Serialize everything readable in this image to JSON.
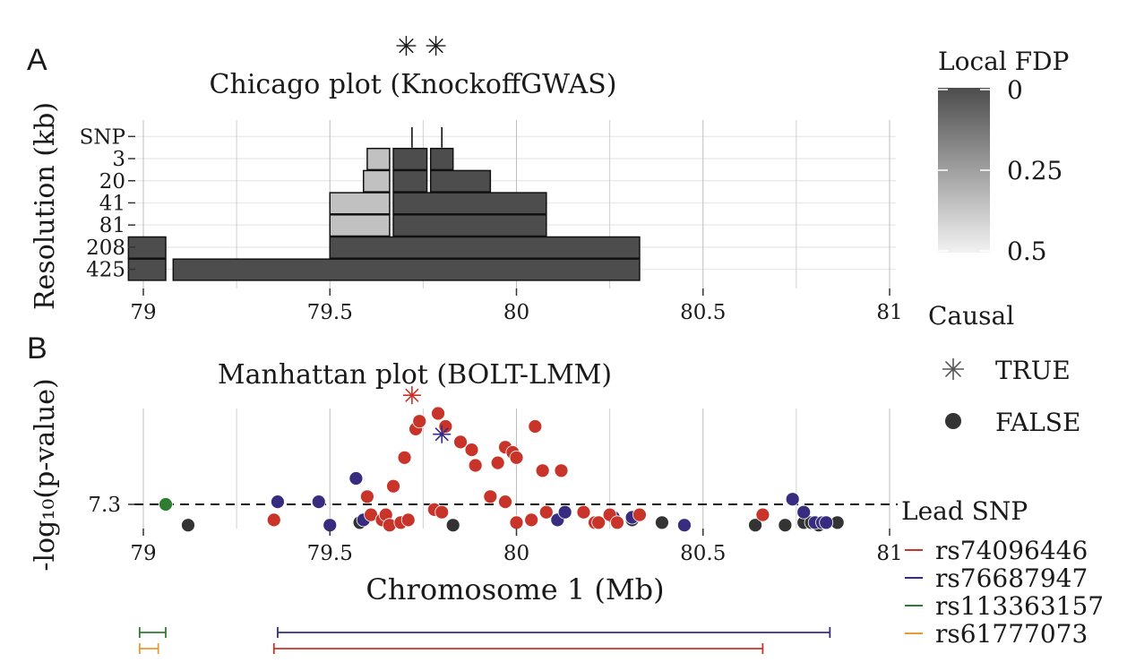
{
  "panel_labels": [
    "A",
    "B"
  ],
  "chart_data": [
    {
      "type": "heatmap",
      "title": "Chicago plot (KnockoffGWAS)",
      "title_marks": [
        "✳",
        "✳"
      ],
      "xlabel": "",
      "ylabel": "Resolution (kb)",
      "xlim": [
        79,
        81
      ],
      "xticks": [
        "79",
        "79.5",
        "80",
        "80.5",
        "81"
      ],
      "yticks": [
        "SNP",
        "3",
        "20",
        "41",
        "81",
        "208",
        "425"
      ],
      "grid": true,
      "color_legend": {
        "title": "Local FDP",
        "ticks": [
          "0",
          "0.25",
          "0.5"
        ],
        "low_color": "#4d4d4d",
        "high_color": "#f2f2f2"
      },
      "blocks": [
        {
          "res": "SNP",
          "x": 79.72,
          "fdp": 0
        },
        {
          "res": "SNP",
          "x": 79.8,
          "fdp": 0
        },
        {
          "res": "3",
          "x0": 79.6,
          "x1": 79.66,
          "fdp": 0.35
        },
        {
          "res": "3",
          "x0": 79.67,
          "x1": 79.76,
          "fdp": 0
        },
        {
          "res": "3",
          "x0": 79.77,
          "x1": 79.83,
          "fdp": 0
        },
        {
          "res": "20",
          "x0": 79.59,
          "x1": 79.66,
          "fdp": 0.35
        },
        {
          "res": "20",
          "x0": 79.67,
          "x1": 79.76,
          "fdp": 0
        },
        {
          "res": "20",
          "x0": 79.77,
          "x1": 79.93,
          "fdp": 0
        },
        {
          "res": "41",
          "x0": 79.5,
          "x1": 79.66,
          "fdp": 0.35
        },
        {
          "res": "41",
          "x0": 79.67,
          "x1": 80.08,
          "fdp": 0
        },
        {
          "res": "81",
          "x0": 79.5,
          "x1": 79.66,
          "fdp": 0.35
        },
        {
          "res": "81",
          "x0": 79.67,
          "x1": 80.08,
          "fdp": 0
        },
        {
          "res": "208",
          "x0": 78.96,
          "x1": 79.06,
          "fdp": 0
        },
        {
          "res": "208",
          "x0": 79.5,
          "x1": 80.33,
          "fdp": 0
        },
        {
          "res": "425",
          "x0": 78.96,
          "x1": 79.06,
          "fdp": 0
        },
        {
          "res": "425",
          "x0": 79.08,
          "x1": 80.33,
          "fdp": 0
        }
      ]
    },
    {
      "type": "scatter",
      "title": "Manhattan plot (BOLT-LMM)",
      "xlabel": "Chromosome 1 (Mb)",
      "ylabel": "-log₁₀(p-value)",
      "xlim": [
        79,
        81
      ],
      "xticks": [
        "79",
        "79.5",
        "80",
        "80.5",
        "81"
      ],
      "threshold": {
        "y": 7.3,
        "tick_label": "7.3",
        "label": "Lead SNP"
      },
      "shape_legend": {
        "title": "Causal",
        "items": [
          {
            "symbol": "✳",
            "label": "TRUE"
          },
          {
            "symbol": "●",
            "label": "FALSE"
          }
        ]
      },
      "series": [
        {
          "name": "rs74096446",
          "color": "#c8342a",
          "points": [
            [
              79.35,
              7.24
            ],
            [
              79.6,
              7.33
            ],
            [
              79.61,
              7.26
            ],
            [
              79.64,
              7.24
            ],
            [
              79.65,
              7.26
            ],
            [
              79.66,
              7.22
            ],
            [
              79.67,
              7.37
            ],
            [
              79.69,
              7.23
            ],
            [
              79.7,
              7.48
            ],
            [
              79.71,
              7.24
            ],
            [
              79.73,
              7.59
            ],
            [
              79.74,
              7.62
            ],
            [
              79.78,
              7.28
            ],
            [
              79.79,
              7.65
            ],
            [
              79.8,
              7.27
            ],
            [
              79.81,
              7.6
            ],
            [
              79.85,
              7.54
            ],
            [
              79.88,
              7.51
            ],
            [
              79.89,
              7.45
            ],
            [
              79.93,
              7.33
            ],
            [
              79.95,
              7.46
            ],
            [
              79.97,
              7.52
            ],
            [
              79.97,
              7.31
            ],
            [
              79.99,
              7.5
            ],
            [
              80.0,
              7.48
            ],
            [
              80.0,
              7.23
            ],
            [
              80.04,
              7.24
            ],
            [
              80.05,
              7.6
            ],
            [
              80.07,
              7.43
            ],
            [
              80.08,
              7.27
            ],
            [
              80.12,
              7.43
            ],
            [
              80.18,
              7.27
            ],
            [
              80.21,
              7.23
            ],
            [
              80.22,
              7.23
            ],
            [
              80.25,
              7.26
            ],
            [
              80.27,
              7.23
            ],
            [
              80.33,
              7.26
            ],
            [
              80.66,
              7.26
            ]
          ]
        },
        {
          "name": "rs76687947",
          "color": "#372c7f",
          "points": [
            [
              79.36,
              7.31
            ],
            [
              79.47,
              7.31
            ],
            [
              79.5,
              7.22
            ],
            [
              79.57,
              7.4
            ],
            [
              79.59,
              7.24
            ],
            [
              80.11,
              7.24
            ],
            [
              80.13,
              7.27
            ],
            [
              80.26,
              7.25
            ],
            [
              80.31,
              7.25
            ],
            [
              80.45,
              7.22
            ],
            [
              80.74,
              7.32
            ],
            [
              80.77,
              7.27
            ],
            [
              80.8,
              7.23
            ],
            [
              80.82,
              7.23
            ],
            [
              80.83,
              7.23
            ]
          ]
        },
        {
          "name": "rs113363157",
          "color": "#2e7d32",
          "points": [
            [
              79.06,
              7.3
            ]
          ]
        },
        {
          "name": "rs61777073",
          "color": "#e69b35",
          "points": []
        },
        {
          "name": "",
          "color": "#333333",
          "points": [
            [
              79.12,
              7.22
            ],
            [
              79.58,
              7.23
            ],
            [
              79.83,
              7.22
            ],
            [
              80.31,
              7.24
            ],
            [
              80.39,
              7.23
            ],
            [
              80.64,
              7.22
            ],
            [
              80.72,
              7.22
            ],
            [
              80.77,
              7.23
            ],
            [
              80.79,
              7.23
            ],
            [
              80.81,
              7.22
            ],
            [
              80.86,
              7.23
            ]
          ]
        }
      ],
      "causal_points": [
        {
          "series": "rs74096446",
          "x": 79.72,
          "y": 7.72
        },
        {
          "series": "rs76687947",
          "x": 79.8,
          "y": 7.57
        }
      ],
      "intervals": [
        {
          "series": "rs113363157",
          "x0": 78.99,
          "x1": 79.06
        },
        {
          "series": "rs76687947",
          "x0": 79.36,
          "x1": 80.84
        },
        {
          "series": "rs61777073",
          "x0": 78.99,
          "x1": 79.04
        },
        {
          "series": "rs74096446",
          "x0": 79.35,
          "x1": 80.66
        }
      ]
    }
  ]
}
